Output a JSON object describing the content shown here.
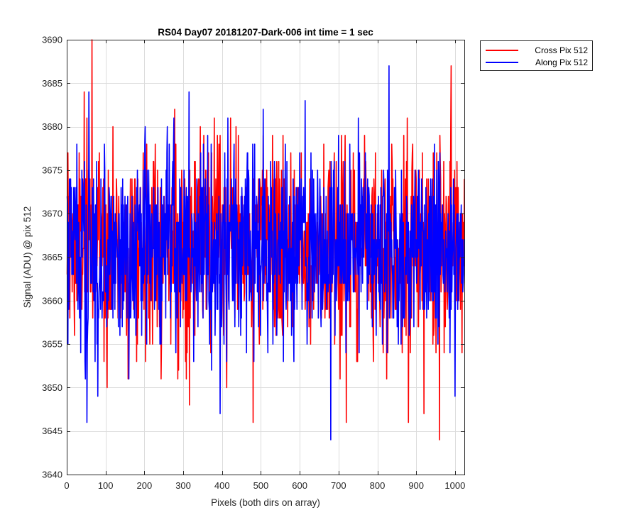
{
  "chart_data": {
    "type": "line",
    "title": "RS04 Day07 20181207-Dark-006 int time = 1 sec",
    "xlabel": "Pixels (both dirs on array)",
    "ylabel": "Signal (ADU) @ pix 512",
    "xlim": [
      0,
      1024
    ],
    "ylim": [
      3640,
      3690
    ],
    "xticks": [
      0,
      100,
      200,
      300,
      400,
      500,
      600,
      700,
      800,
      900,
      1000
    ],
    "yticks": [
      3640,
      3645,
      3650,
      3655,
      3660,
      3665,
      3670,
      3675,
      3680,
      3685,
      3690
    ],
    "grid": true,
    "legend_position": "outside-top-right",
    "series_note": "Per-pixel signal fluctuating around 3666 ADU for pixels 1-1024; individual values are too dense to read and are estimated from the band envelope.",
    "series": [
      {
        "name": "Cross Pix 512",
        "color": "#ff0000",
        "x_range": [
          1,
          1024
        ],
        "mean": 3666.5,
        "std_dev": 5.8,
        "min": 3644,
        "max": 3690,
        "notable_points": [
          {
            "x": 65,
            "y": 3690
          },
          {
            "x": 45,
            "y": 3684
          },
          {
            "x": 990,
            "y": 3687
          },
          {
            "x": 960,
            "y": 3644
          },
          {
            "x": 480,
            "y": 3646
          },
          {
            "x": 720,
            "y": 3646
          },
          {
            "x": 880,
            "y": 3646
          },
          {
            "x": 920,
            "y": 3647
          }
        ]
      },
      {
        "name": "Along Pix 512",
        "color": "#0000ff",
        "x_range": [
          1,
          1024
        ],
        "mean": 3666,
        "std_dev": 5.8,
        "min": 3644,
        "max": 3687,
        "notable_points": [
          {
            "x": 830,
            "y": 3687
          },
          {
            "x": 680,
            "y": 3644
          },
          {
            "x": 52,
            "y": 3646
          },
          {
            "x": 395,
            "y": 3647
          },
          {
            "x": 80,
            "y": 3649
          },
          {
            "x": 1000,
            "y": 3649
          }
        ]
      }
    ]
  }
}
